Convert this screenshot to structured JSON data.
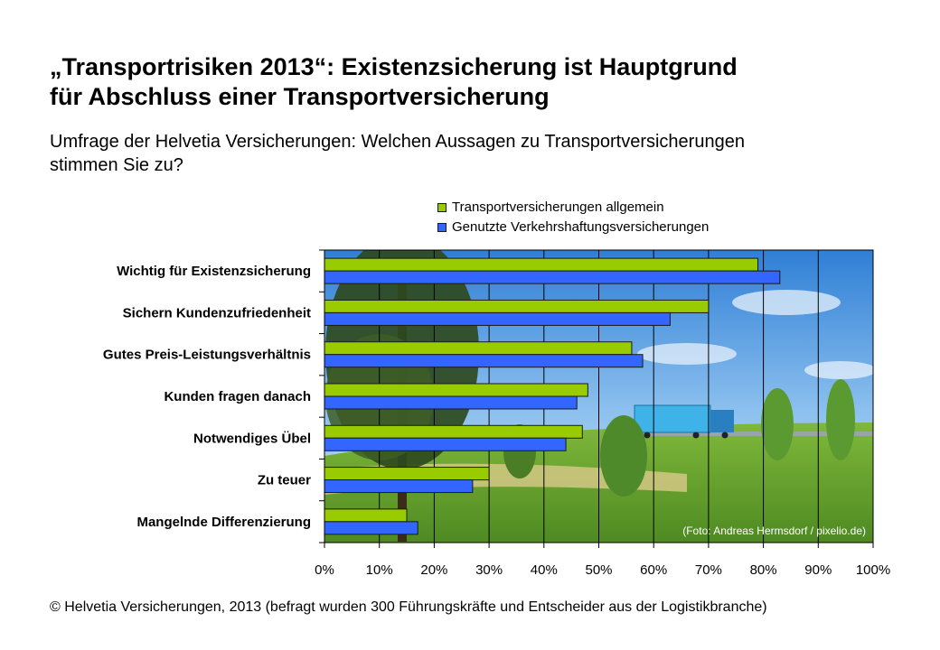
{
  "title": {
    "line1": "„Transportrisiken 2013“: Existenzsicherung ist Hauptgrund",
    "line2": "für Abschluss einer Transportversicherung"
  },
  "subtitle": {
    "line1": "Umfrage der Helvetia Versicherungen: Welchen Aussagen zu Transportversicherungen",
    "line2": "stimmen Sie zu?"
  },
  "photo_credit": "(Foto: Andreas Hermsdorf / pixelio.de)",
  "footer": "© Helvetia Versicherungen, 2013 (befragt wurden 300 Führungskräfte und Entscheider aus der Logistikbranche)",
  "colors": {
    "green": "#99cc00",
    "blue": "#3366ff",
    "sky": "#5aa0e0",
    "grass": "#6aa830"
  },
  "chart_data": {
    "type": "bar",
    "orientation": "horizontal",
    "categories": [
      "Wichtig für Existenzsicherung",
      "Sichern Kundenzufriedenheit",
      "Gutes Preis-Leistungsverhältnis",
      "Kunden fragen danach",
      "Notwendiges Übel",
      "Zu teuer",
      "Mangelnde Differenzierung"
    ],
    "series": [
      {
        "name": "Transportversicherungen allgemein",
        "color": "#99cc00",
        "values": [
          79,
          70,
          56,
          48,
          47,
          30,
          15
        ]
      },
      {
        "name": "Genutzte Verkehrshaftungsversicherungen",
        "color": "#3366ff",
        "values": [
          83,
          63,
          58,
          46,
          44,
          27,
          17
        ]
      }
    ],
    "xlim": [
      0,
      100
    ],
    "x_ticks": [
      "0%",
      "10%",
      "20%",
      "30%",
      "40%",
      "50%",
      "60%",
      "70%",
      "80%",
      "90%",
      "100%"
    ],
    "grid": true,
    "legend_position": "top"
  }
}
